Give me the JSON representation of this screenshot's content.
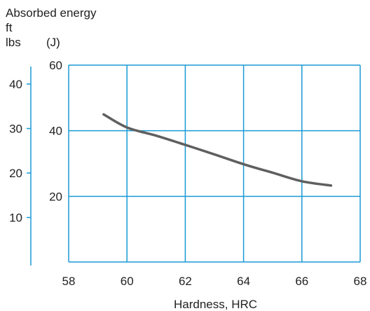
{
  "chart_data": {
    "type": "line",
    "ylabel_lines": [
      "Absorbed energy",
      "ft",
      "lbs"
    ],
    "ylabel_right": "(J)",
    "xlabel": "Hardness, HRC",
    "xlim": [
      58,
      68
    ],
    "x_ticks": [
      "58",
      "60",
      "62",
      "64",
      "66",
      "68"
    ],
    "ylim_joule": [
      0,
      60
    ],
    "y_ticks_joule": [
      "60",
      "40",
      "20"
    ],
    "ylim_ftlbs": [
      0,
      44.25
    ],
    "y_ticks_ftlbs": [
      "40",
      "30",
      "20",
      "10"
    ],
    "grid": true,
    "series": [
      {
        "x": [
          59.2,
          60,
          61,
          62,
          63,
          64,
          65,
          66,
          67
        ],
        "y": [
          45,
          41,
          38.5,
          35.7,
          32.8,
          29.8,
          27.2,
          24.6,
          23.3
        ]
      }
    ],
    "colors": {
      "grid": "#1a9ad6",
      "line": "#5f5f5f",
      "text": "#222222"
    }
  }
}
